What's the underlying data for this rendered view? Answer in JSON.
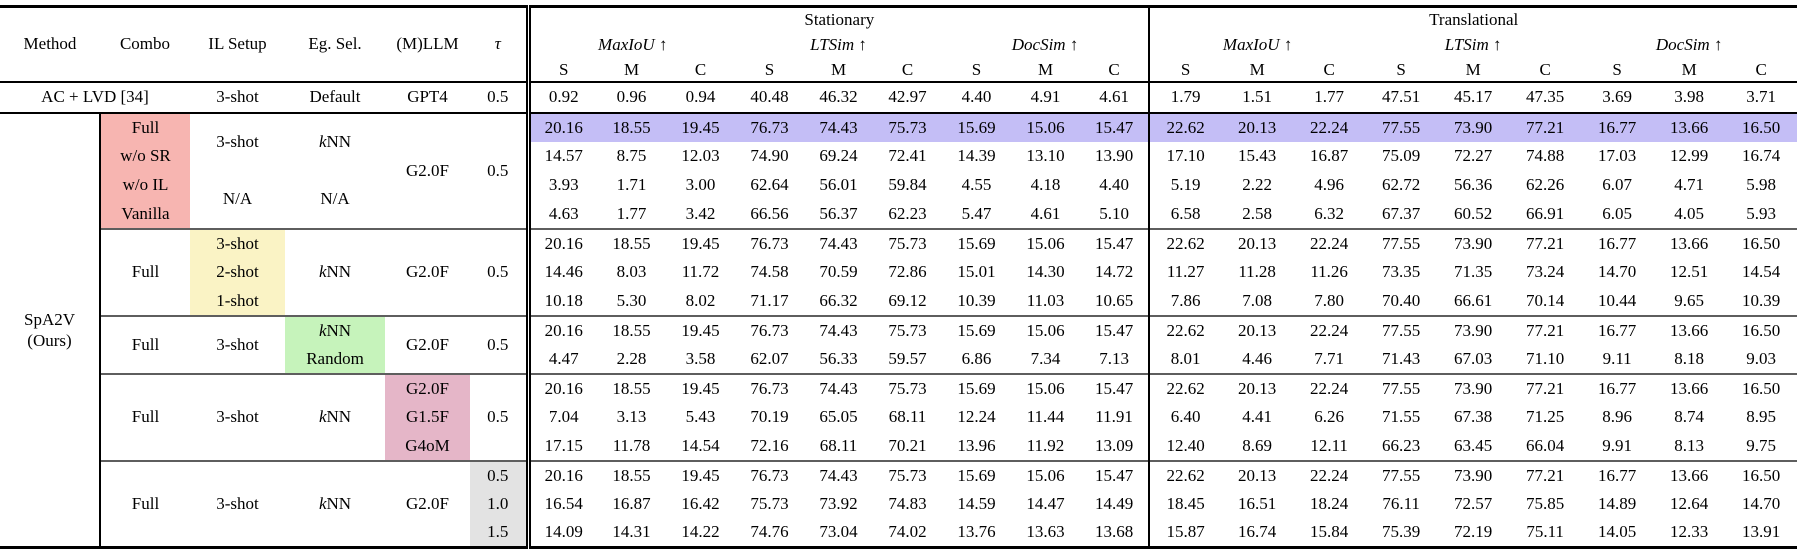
{
  "colors": {
    "salmon": "#f7b5b1",
    "yellow": "#faf3c5",
    "green": "#c6f3bb",
    "mauve": "#e5b6c8",
    "gray": "#e3e3e3",
    "lavender": "#c4bef6"
  },
  "table": {
    "left_headers": [
      "Method",
      "Combo",
      "IL Setup",
      "Eg. Sel.",
      "(M)LLM",
      "τ"
    ],
    "groups": [
      {
        "label": "Stationary",
        "metrics": [
          {
            "name": "MaxIoU",
            "arrow": "↑"
          },
          {
            "name": "LTSim",
            "arrow": "↑"
          },
          {
            "name": "DocSim",
            "arrow": "↑"
          }
        ]
      },
      {
        "label": "Translational",
        "metrics": [
          {
            "name": "MaxIoU",
            "arrow": "↑"
          },
          {
            "name": "LTSim",
            "arrow": "↑"
          },
          {
            "name": "DocSim",
            "arrow": "↑"
          }
        ]
      }
    ],
    "subcols": [
      "S",
      "M",
      "C"
    ],
    "baseline": {
      "method": "AC + LVD [34]",
      "il": "3-shot",
      "eg": "Default",
      "llm": "GPT4",
      "tau": "0.5",
      "values": [
        "0.92",
        "0.96",
        "0.94",
        "40.48",
        "46.32",
        "42.97",
        "4.40",
        "4.91",
        "4.61",
        "1.79",
        "1.51",
        "1.77",
        "47.51",
        "45.17",
        "47.35",
        "3.69",
        "3.98",
        "3.71"
      ]
    },
    "ours_label_lines": [
      "SpA2V",
      "(Ours)"
    ],
    "blocks": [
      {
        "left": {
          "combo": [
            {
              "text": "Full",
              "span": 1,
              "bg": "salmon"
            },
            {
              "text": "w/o SR",
              "span": 1,
              "bg": "salmon"
            },
            {
              "text": "w/o IL",
              "span": 1,
              "bg": "salmon"
            },
            {
              "text": "Vanilla",
              "span": 1,
              "bg": "salmon"
            }
          ],
          "il": [
            {
              "text": "3-shot",
              "span": 2
            },
            {
              "text": "N/A",
              "span": 2
            }
          ],
          "eg": [
            {
              "em": "k",
              "text": "NN",
              "span": 2
            },
            {
              "text": "N/A",
              "span": 2
            }
          ],
          "llm": [
            {
              "text": "G2.0F",
              "span": 4
            }
          ],
          "tau": [
            {
              "text": "0.5",
              "span": 4
            }
          ]
        },
        "rows": [
          {
            "highlight": true,
            "values": [
              "20.16",
              "18.55",
              "19.45",
              "76.73",
              "74.43",
              "75.73",
              "15.69",
              "15.06",
              "15.47",
              "22.62",
              "20.13",
              "22.24",
              "77.55",
              "73.90",
              "77.21",
              "16.77",
              "13.66",
              "16.50"
            ]
          },
          {
            "values": [
              "14.57",
              "8.75",
              "12.03",
              "74.90",
              "69.24",
              "72.41",
              "14.39",
              "13.10",
              "13.90",
              "17.10",
              "15.43",
              "16.87",
              "75.09",
              "72.27",
              "74.88",
              "17.03",
              "12.99",
              "16.74"
            ]
          },
          {
            "values": [
              "3.93",
              "1.71",
              "3.00",
              "62.64",
              "56.01",
              "59.84",
              "4.55",
              "4.18",
              "4.40",
              "5.19",
              "2.22",
              "4.96",
              "62.72",
              "56.36",
              "62.26",
              "6.07",
              "4.71",
              "5.98"
            ]
          },
          {
            "values": [
              "4.63",
              "1.77",
              "3.42",
              "66.56",
              "56.37",
              "62.23",
              "5.47",
              "4.61",
              "5.10",
              "6.58",
              "2.58",
              "6.32",
              "67.37",
              "60.52",
              "66.91",
              "6.05",
              "4.05",
              "5.93"
            ]
          }
        ]
      },
      {
        "left": {
          "combo": [
            {
              "text": "Full",
              "span": 3
            }
          ],
          "il": [
            {
              "text": "3-shot",
              "span": 1,
              "bg": "yellow"
            },
            {
              "text": "2-shot",
              "span": 1,
              "bg": "yellow"
            },
            {
              "text": "1-shot",
              "span": 1,
              "bg": "yellow"
            }
          ],
          "eg": [
            {
              "em": "k",
              "text": "NN",
              "span": 3
            }
          ],
          "llm": [
            {
              "text": "G2.0F",
              "span": 3
            }
          ],
          "tau": [
            {
              "text": "0.5",
              "span": 3
            }
          ]
        },
        "rows": [
          {
            "values": [
              "20.16",
              "18.55",
              "19.45",
              "76.73",
              "74.43",
              "75.73",
              "15.69",
              "15.06",
              "15.47",
              "22.62",
              "20.13",
              "22.24",
              "77.55",
              "73.90",
              "77.21",
              "16.77",
              "13.66",
              "16.50"
            ]
          },
          {
            "values": [
              "14.46",
              "8.03",
              "11.72",
              "74.58",
              "70.59",
              "72.86",
              "15.01",
              "14.30",
              "14.72",
              "11.27",
              "11.28",
              "11.26",
              "73.35",
              "71.35",
              "73.24",
              "14.70",
              "12.51",
              "14.54"
            ]
          },
          {
            "values": [
              "10.18",
              "5.30",
              "8.02",
              "71.17",
              "66.32",
              "69.12",
              "10.39",
              "11.03",
              "10.65",
              "7.86",
              "7.08",
              "7.80",
              "70.40",
              "66.61",
              "70.14",
              "10.44",
              "9.65",
              "10.39"
            ]
          }
        ]
      },
      {
        "left": {
          "combo": [
            {
              "text": "Full",
              "span": 2
            }
          ],
          "il": [
            {
              "text": "3-shot",
              "span": 2
            }
          ],
          "eg": [
            {
              "em": "k",
              "text": "NN",
              "span": 1,
              "bg": "green"
            },
            {
              "text": "Random",
              "span": 1,
              "bg": "green"
            }
          ],
          "llm": [
            {
              "text": "G2.0F",
              "span": 2
            }
          ],
          "tau": [
            {
              "text": "0.5",
              "span": 2
            }
          ]
        },
        "rows": [
          {
            "values": [
              "20.16",
              "18.55",
              "19.45",
              "76.73",
              "74.43",
              "75.73",
              "15.69",
              "15.06",
              "15.47",
              "22.62",
              "20.13",
              "22.24",
              "77.55",
              "73.90",
              "77.21",
              "16.77",
              "13.66",
              "16.50"
            ]
          },
          {
            "values": [
              "4.47",
              "2.28",
              "3.58",
              "62.07",
              "56.33",
              "59.57",
              "6.86",
              "7.34",
              "7.13",
              "8.01",
              "4.46",
              "7.71",
              "71.43",
              "67.03",
              "71.10",
              "9.11",
              "8.18",
              "9.03"
            ]
          }
        ]
      },
      {
        "left": {
          "combo": [
            {
              "text": "Full",
              "span": 3
            }
          ],
          "il": [
            {
              "text": "3-shot",
              "span": 3
            }
          ],
          "eg": [
            {
              "em": "k",
              "text": "NN",
              "span": 3
            }
          ],
          "llm": [
            {
              "text": "G2.0F",
              "span": 1,
              "bg": "mauve"
            },
            {
              "text": "G1.5F",
              "span": 1,
              "bg": "mauve"
            },
            {
              "text": "G4oM",
              "span": 1,
              "bg": "mauve"
            }
          ],
          "tau": [
            {
              "text": "0.5",
              "span": 3
            }
          ]
        },
        "rows": [
          {
            "values": [
              "20.16",
              "18.55",
              "19.45",
              "76.73",
              "74.43",
              "75.73",
              "15.69",
              "15.06",
              "15.47",
              "22.62",
              "20.13",
              "22.24",
              "77.55",
              "73.90",
              "77.21",
              "16.77",
              "13.66",
              "16.50"
            ]
          },
          {
            "values": [
              "7.04",
              "3.13",
              "5.43",
              "70.19",
              "65.05",
              "68.11",
              "12.24",
              "11.44",
              "11.91",
              "6.40",
              "4.41",
              "6.26",
              "71.55",
              "67.38",
              "71.25",
              "8.96",
              "8.74",
              "8.95"
            ]
          },
          {
            "values": [
              "17.15",
              "11.78",
              "14.54",
              "72.16",
              "68.11",
              "70.21",
              "13.96",
              "11.92",
              "13.09",
              "12.40",
              "8.69",
              "12.11",
              "66.23",
              "63.45",
              "66.04",
              "9.91",
              "8.13",
              "9.75"
            ]
          }
        ]
      },
      {
        "left": {
          "combo": [
            {
              "text": "Full",
              "span": 3
            }
          ],
          "il": [
            {
              "text": "3-shot",
              "span": 3
            }
          ],
          "eg": [
            {
              "em": "k",
              "text": "NN",
              "span": 3
            }
          ],
          "llm": [
            {
              "text": "G2.0F",
              "span": 3
            }
          ],
          "tau": [
            {
              "text": "0.5",
              "span": 1,
              "bg": "gray"
            },
            {
              "text": "1.0",
              "span": 1,
              "bg": "gray"
            },
            {
              "text": "1.5",
              "span": 1,
              "bg": "gray"
            }
          ]
        },
        "rows": [
          {
            "values": [
              "20.16",
              "18.55",
              "19.45",
              "76.73",
              "74.43",
              "75.73",
              "15.69",
              "15.06",
              "15.47",
              "22.62",
              "20.13",
              "22.24",
              "77.55",
              "73.90",
              "77.21",
              "16.77",
              "13.66",
              "16.50"
            ]
          },
          {
            "values": [
              "16.54",
              "16.87",
              "16.42",
              "75.73",
              "73.92",
              "74.83",
              "14.59",
              "14.47",
              "14.49",
              "18.45",
              "16.51",
              "18.24",
              "76.11",
              "72.57",
              "75.85",
              "14.89",
              "12.64",
              "14.70"
            ]
          },
          {
            "values": [
              "14.09",
              "14.31",
              "14.22",
              "74.76",
              "73.04",
              "74.02",
              "13.76",
              "13.63",
              "13.68",
              "15.87",
              "16.74",
              "15.84",
              "75.39",
              "72.19",
              "75.11",
              "14.05",
              "12.33",
              "13.91"
            ]
          }
        ]
      }
    ]
  }
}
